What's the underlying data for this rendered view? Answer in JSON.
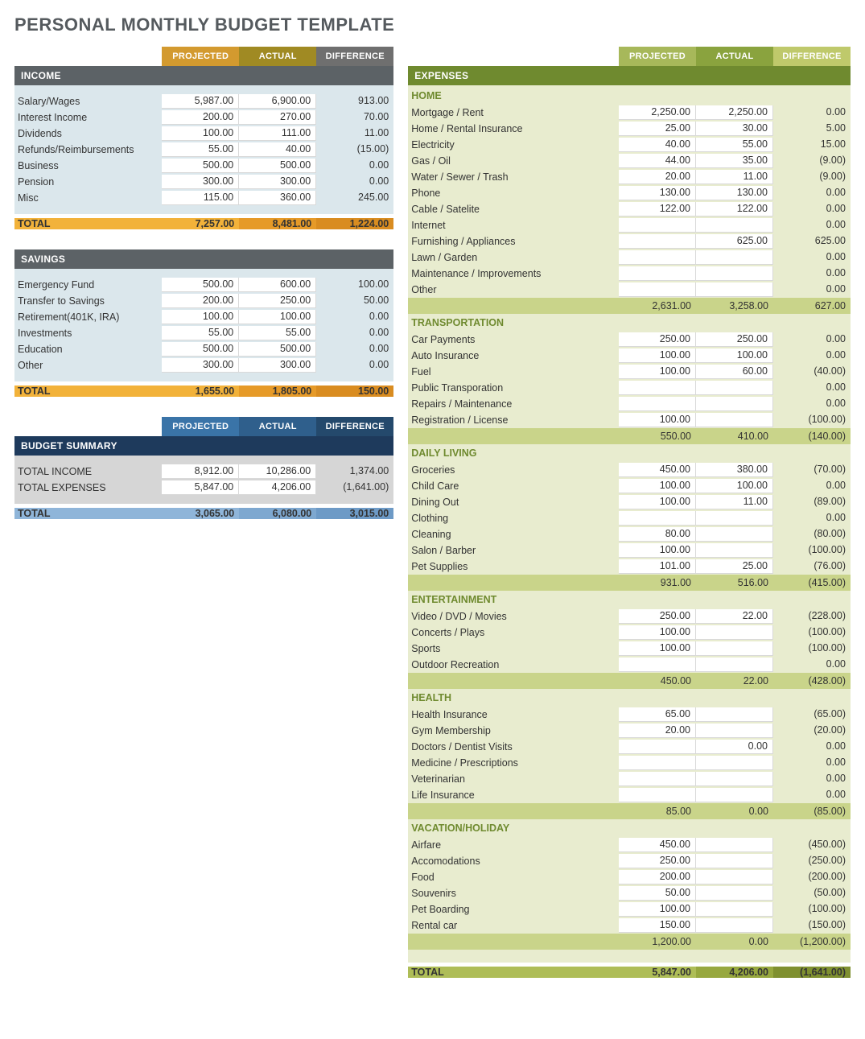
{
  "title": "PERSONAL MONTHLY BUDGET TEMPLATE",
  "column_headers": [
    "PROJECTED",
    "ACTUAL",
    "DIFFERENCE"
  ],
  "colors": {
    "title_text": "#555a5e",
    "left_header_bg": [
      "#d39a2f",
      "#a08a23",
      "#6f6f6f"
    ],
    "left_section_bar": "#5c6266",
    "left_body_bg": "#dbe7ec",
    "left_total_bg": [
      "#f2b23a",
      "#e69a28",
      "#d98c20"
    ],
    "summary_header_bg": [
      "#3a74a8",
      "#2f5f8c",
      "#24496c"
    ],
    "summary_section_bar": "#1e3a5c",
    "summary_body_bg": "#d6d6d6",
    "summary_total_bg": [
      "#8fb5d9",
      "#7ea8d0",
      "#6d9ac6"
    ],
    "right_header_bg": [
      "#a7b85a",
      "#8aa33e",
      "#bfc96b"
    ],
    "right_section_bar": "#6f8a2f",
    "right_body_bg": "#e8eccf",
    "right_cat_text": "#6f8a2f",
    "right_subtotal_bg": "#c9d48a",
    "right_total_bg": [
      "#aebd57",
      "#97a83f",
      "#7f9030"
    ],
    "cell_border": "#d9d9d9"
  },
  "left_panels": [
    {
      "key": "income",
      "title": "INCOME",
      "rows": [
        {
          "label": "Salary/Wages",
          "proj": "5,987.00",
          "act": "6,900.00",
          "diff": "913.00"
        },
        {
          "label": "Interest Income",
          "proj": "200.00",
          "act": "270.00",
          "diff": "70.00"
        },
        {
          "label": "Dividends",
          "proj": "100.00",
          "act": "111.00",
          "diff": "11.00"
        },
        {
          "label": "Refunds/Reimbursements",
          "proj": "55.00",
          "act": "40.00",
          "diff": "(15.00)"
        },
        {
          "label": "Business",
          "proj": "500.00",
          "act": "500.00",
          "diff": "0.00"
        },
        {
          "label": "Pension",
          "proj": "300.00",
          "act": "300.00",
          "diff": "0.00"
        },
        {
          "label": "Misc",
          "proj": "115.00",
          "act": "360.00",
          "diff": "245.00"
        }
      ],
      "total": {
        "label": "TOTAL",
        "proj": "7,257.00",
        "act": "8,481.00",
        "diff": "1,224.00"
      }
    },
    {
      "key": "savings",
      "title": "SAVINGS",
      "rows": [
        {
          "label": "Emergency Fund",
          "proj": "500.00",
          "act": "600.00",
          "diff": "100.00"
        },
        {
          "label": "Transfer to Savings",
          "proj": "200.00",
          "act": "250.00",
          "diff": "50.00"
        },
        {
          "label": "Retirement(401K, IRA)",
          "proj": "100.00",
          "act": "100.00",
          "diff": "0.00"
        },
        {
          "label": "Investments",
          "proj": "55.00",
          "act": "55.00",
          "diff": "0.00"
        },
        {
          "label": "Education",
          "proj": "500.00",
          "act": "500.00",
          "diff": "0.00"
        },
        {
          "label": "Other",
          "proj": "300.00",
          "act": "300.00",
          "diff": "0.00"
        }
      ],
      "total": {
        "label": "TOTAL",
        "proj": "1,655.00",
        "act": "1,805.00",
        "diff": "150.00"
      }
    }
  ],
  "summary": {
    "title": "BUDGET SUMMARY",
    "rows": [
      {
        "label": "TOTAL INCOME",
        "proj": "8,912.00",
        "act": "10,286.00",
        "diff": "1,374.00"
      },
      {
        "label": "TOTAL EXPENSES",
        "proj": "5,847.00",
        "act": "4,206.00",
        "diff": "(1,641.00)"
      }
    ],
    "total": {
      "label": "TOTAL",
      "proj": "3,065.00",
      "act": "6,080.00",
      "diff": "3,015.00"
    }
  },
  "expenses": {
    "title": "EXPENSES",
    "categories": [
      {
        "name": "HOME",
        "rows": [
          {
            "label": "Mortgage / Rent",
            "proj": "2,250.00",
            "act": "2,250.00",
            "diff": "0.00"
          },
          {
            "label": "Home / Rental Insurance",
            "proj": "25.00",
            "act": "30.00",
            "diff": "5.00"
          },
          {
            "label": "Electricity",
            "proj": "40.00",
            "act": "55.00",
            "diff": "15.00"
          },
          {
            "label": "Gas / Oil",
            "proj": "44.00",
            "act": "35.00",
            "diff": "(9.00)"
          },
          {
            "label": "Water / Sewer / Trash",
            "proj": "20.00",
            "act": "11.00",
            "diff": "(9.00)"
          },
          {
            "label": "Phone",
            "proj": "130.00",
            "act": "130.00",
            "diff": "0.00"
          },
          {
            "label": "Cable / Satelite",
            "proj": "122.00",
            "act": "122.00",
            "diff": "0.00"
          },
          {
            "label": "Internet",
            "proj": "",
            "act": "",
            "diff": "0.00"
          },
          {
            "label": "Furnishing / Appliances",
            "proj": "",
            "act": "625.00",
            "diff": "625.00"
          },
          {
            "label": "Lawn / Garden",
            "proj": "",
            "act": "",
            "diff": "0.00"
          },
          {
            "label": "Maintenance / Improvements",
            "proj": "",
            "act": "",
            "diff": "0.00"
          },
          {
            "label": "Other",
            "proj": "",
            "act": "",
            "diff": "0.00"
          }
        ],
        "subtotal": {
          "proj": "2,631.00",
          "act": "3,258.00",
          "diff": "627.00"
        }
      },
      {
        "name": "TRANSPORTATION",
        "rows": [
          {
            "label": "Car Payments",
            "proj": "250.00",
            "act": "250.00",
            "diff": "0.00"
          },
          {
            "label": "Auto Insurance",
            "proj": "100.00",
            "act": "100.00",
            "diff": "0.00"
          },
          {
            "label": "Fuel",
            "proj": "100.00",
            "act": "60.00",
            "diff": "(40.00)"
          },
          {
            "label": "Public Transporation",
            "proj": "",
            "act": "",
            "diff": "0.00"
          },
          {
            "label": "Repairs / Maintenance",
            "proj": "",
            "act": "",
            "diff": "0.00"
          },
          {
            "label": "Registration / License",
            "proj": "100.00",
            "act": "",
            "diff": "(100.00)"
          }
        ],
        "subtotal": {
          "proj": "550.00",
          "act": "410.00",
          "diff": "(140.00)"
        }
      },
      {
        "name": "DAILY LIVING",
        "rows": [
          {
            "label": "Groceries",
            "proj": "450.00",
            "act": "380.00",
            "diff": "(70.00)"
          },
          {
            "label": "Child Care",
            "proj": "100.00",
            "act": "100.00",
            "diff": "0.00"
          },
          {
            "label": "Dining Out",
            "proj": "100.00",
            "act": "11.00",
            "diff": "(89.00)"
          },
          {
            "label": "Clothing",
            "proj": "",
            "act": "",
            "diff": "0.00"
          },
          {
            "label": "Cleaning",
            "proj": "80.00",
            "act": "",
            "diff": "(80.00)"
          },
          {
            "label": "Salon / Barber",
            "proj": "100.00",
            "act": "",
            "diff": "(100.00)"
          },
          {
            "label": "Pet Supplies",
            "proj": "101.00",
            "act": "25.00",
            "diff": "(76.00)"
          }
        ],
        "subtotal": {
          "proj": "931.00",
          "act": "516.00",
          "diff": "(415.00)"
        }
      },
      {
        "name": "ENTERTAINMENT",
        "rows": [
          {
            "label": "Video / DVD / Movies",
            "proj": "250.00",
            "act": "22.00",
            "diff": "(228.00)"
          },
          {
            "label": "Concerts / Plays",
            "proj": "100.00",
            "act": "",
            "diff": "(100.00)"
          },
          {
            "label": "Sports",
            "proj": "100.00",
            "act": "",
            "diff": "(100.00)"
          },
          {
            "label": "Outdoor Recreation",
            "proj": "",
            "act": "",
            "diff": "0.00"
          }
        ],
        "subtotal": {
          "proj": "450.00",
          "act": "22.00",
          "diff": "(428.00)"
        }
      },
      {
        "name": "HEALTH",
        "rows": [
          {
            "label": "Health Insurance",
            "proj": "65.00",
            "act": "",
            "diff": "(65.00)"
          },
          {
            "label": "Gym Membership",
            "proj": "20.00",
            "act": "",
            "diff": "(20.00)"
          },
          {
            "label": "Doctors / Dentist Visits",
            "proj": "",
            "act": "0.00",
            "diff": "0.00"
          },
          {
            "label": "Medicine / Prescriptions",
            "proj": "",
            "act": "",
            "diff": "0.00"
          },
          {
            "label": "Veterinarian",
            "proj": "",
            "act": "",
            "diff": "0.00"
          },
          {
            "label": "Life Insurance",
            "proj": "",
            "act": "",
            "diff": "0.00"
          }
        ],
        "subtotal": {
          "proj": "85.00",
          "act": "0.00",
          "diff": "(85.00)"
        }
      },
      {
        "name": "VACATION/HOLIDAY",
        "rows": [
          {
            "label": "Airfare",
            "proj": "450.00",
            "act": "",
            "diff": "(450.00)"
          },
          {
            "label": "Accomodations",
            "proj": "250.00",
            "act": "",
            "diff": "(250.00)"
          },
          {
            "label": "Food",
            "proj": "200.00",
            "act": "",
            "diff": "(200.00)"
          },
          {
            "label": "Souvenirs",
            "proj": "50.00",
            "act": "",
            "diff": "(50.00)"
          },
          {
            "label": "Pet Boarding",
            "proj": "100.00",
            "act": "",
            "diff": "(100.00)"
          },
          {
            "label": "Rental car",
            "proj": "150.00",
            "act": "",
            "diff": "(150.00)"
          }
        ],
        "subtotal": {
          "proj": "1,200.00",
          "act": "0.00",
          "diff": "(1,200.00)"
        }
      }
    ],
    "grand_total": {
      "label": "TOTAL",
      "proj": "5,847.00",
      "act": "4,206.00",
      "diff": "(1,641.00)"
    }
  }
}
